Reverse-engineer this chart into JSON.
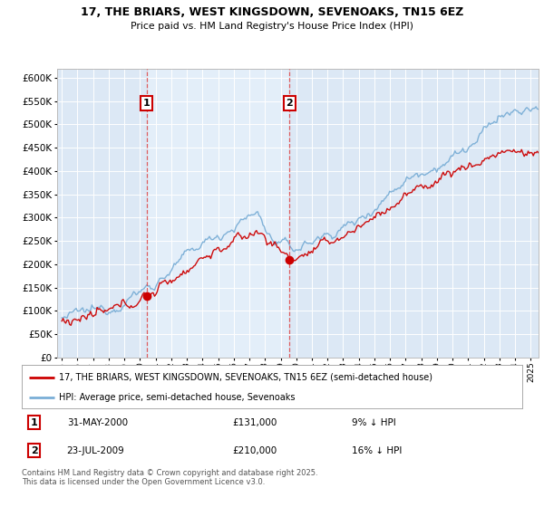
{
  "title1": "17, THE BRIARS, WEST KINGSDOWN, SEVENOAKS, TN15 6EZ",
  "title2": "Price paid vs. HM Land Registry's House Price Index (HPI)",
  "bg_color": "#dce8f5",
  "plot_bg_color": "#dce8f5",
  "highlight_bg": "#e8f0fa",
  "grid_color": "#ffffff",
  "red_color": "#cc0000",
  "blue_color": "#7aaed6",
  "dashed_color": "#dd4444",
  "marker1_year": 2000.42,
  "marker2_year": 2009.56,
  "marker1_label": "1",
  "marker2_label": "2",
  "sale1_date": "31-MAY-2000",
  "sale1_price": "£131,000",
  "sale1_hpi": "9% ↓ HPI",
  "sale2_date": "23-JUL-2009",
  "sale2_price": "£210,000",
  "sale2_hpi": "16% ↓ HPI",
  "legend1": "17, THE BRIARS, WEST KINGSDOWN, SEVENOAKS, TN15 6EZ (semi-detached house)",
  "legend2": "HPI: Average price, semi-detached house, Sevenoaks",
  "footer": "Contains HM Land Registry data © Crown copyright and database right 2025.\nThis data is licensed under the Open Government Licence v3.0.",
  "ylim": [
    0,
    620000
  ],
  "yticks": [
    0,
    50000,
    100000,
    150000,
    200000,
    250000,
    300000,
    350000,
    400000,
    450000,
    500000,
    550000,
    600000
  ],
  "xlim_start": 1994.7,
  "xlim_end": 2025.5,
  "sale1_red_value": 131000,
  "sale2_red_value": 210000
}
